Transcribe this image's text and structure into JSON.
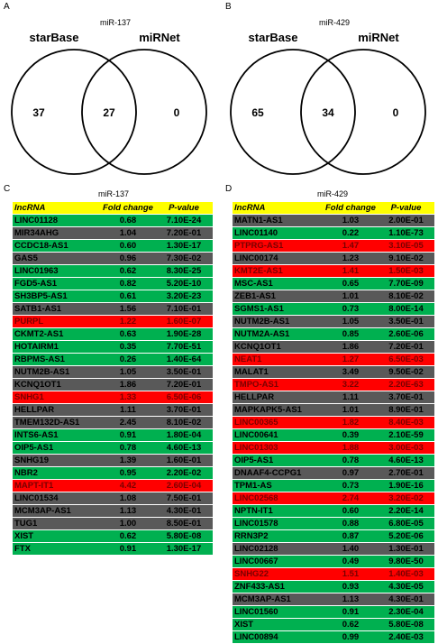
{
  "panels": [
    {
      "id": "A",
      "title": "miR-137",
      "left_label": "starBase",
      "right_label": "miRNet",
      "left_only": "37",
      "overlap": "27",
      "right_only": "0"
    },
    {
      "id": "B",
      "title": "miR-429",
      "left_label": "starBase",
      "right_label": "miRNet",
      "left_only": "65",
      "overlap": "34",
      "right_only": "0"
    }
  ],
  "tables": [
    {
      "id": "C",
      "title": "miR-137",
      "headers": [
        "lncRNA",
        "Fold change",
        "P-value"
      ],
      "rows": [
        {
          "name": "LINC01128",
          "fc": "0.68",
          "p": "7.10E-24",
          "color": "green"
        },
        {
          "name": "MIR34AHG",
          "fc": "1.04",
          "p": "7.20E-01",
          "color": "gray"
        },
        {
          "name": "CCDC18-AS1",
          "fc": "0.60",
          "p": "1.30E-17",
          "color": "green"
        },
        {
          "name": "GAS5",
          "fc": "0.96",
          "p": "7.30E-02",
          "color": "gray"
        },
        {
          "name": "LINC01963",
          "fc": "0.62",
          "p": "8.30E-25",
          "color": "green"
        },
        {
          "name": "FGD5-AS1",
          "fc": "0.82",
          "p": "5.20E-10",
          "color": "green"
        },
        {
          "name": "SH3BP5-AS1",
          "fc": "0.61",
          "p": "3.20E-23",
          "color": "green"
        },
        {
          "name": "SATB1-AS1",
          "fc": "1.56",
          "p": "7.10E-01",
          "color": "gray"
        },
        {
          "name": "PURPL",
          "fc": "1.22",
          "p": "1.60E-07",
          "color": "red"
        },
        {
          "name": "CKMT2-AS1",
          "fc": "0.63",
          "p": "1.90E-28",
          "color": "green"
        },
        {
          "name": "HOTAIRM1",
          "fc": "0.35",
          "p": "7.70E-51",
          "color": "green"
        },
        {
          "name": "RBPMS-AS1",
          "fc": "0.26",
          "p": "1.40E-64",
          "color": "green"
        },
        {
          "name": "NUTM2B-AS1",
          "fc": "1.05",
          "p": "3.50E-01",
          "color": "gray"
        },
        {
          "name": "KCNQ1OT1",
          "fc": "1.86",
          "p": "7.20E-01",
          "color": "gray"
        },
        {
          "name": "SNHG1",
          "fc": "1.33",
          "p": "6.50E-06",
          "color": "red"
        },
        {
          "name": "HELLPAR",
          "fc": "1.11",
          "p": "3.70E-01",
          "color": "gray"
        },
        {
          "name": "TMEM132D-AS1",
          "fc": "2.45",
          "p": "8.10E-02",
          "color": "gray"
        },
        {
          "name": "INTS6-AS1",
          "fc": "0.91",
          "p": "1.80E-04",
          "color": "green"
        },
        {
          "name": "OIP5-AS1",
          "fc": "0.78",
          "p": "4.60E-13",
          "color": "green"
        },
        {
          "name": "SNHG19",
          "fc": "1.39",
          "p": "1.60E-01",
          "color": "gray"
        },
        {
          "name": "NBR2",
          "fc": "0.95",
          "p": "2.20E-02",
          "color": "green"
        },
        {
          "name": "MAPT-IT1",
          "fc": "4.42",
          "p": "2.60E-04",
          "color": "red"
        },
        {
          "name": "LINC01534",
          "fc": "1.08",
          "p": "7.50E-01",
          "color": "gray"
        },
        {
          "name": "MCM3AP-AS1",
          "fc": "1.13",
          "p": "4.30E-01",
          "color": "gray"
        },
        {
          "name": "TUG1",
          "fc": "1.00",
          "p": "8.50E-01",
          "color": "gray"
        },
        {
          "name": "XIST",
          "fc": "0.62",
          "p": "5.80E-08",
          "color": "green"
        },
        {
          "name": "FTX",
          "fc": "0.91",
          "p": "1.30E-17",
          "color": "green"
        }
      ]
    },
    {
      "id": "D",
      "title": "miR-429",
      "headers": [
        "lncRNA",
        "Fold change",
        "P-value"
      ],
      "rows": [
        {
          "name": "MATN1-AS1",
          "fc": "1.03",
          "p": "2.00E-01",
          "color": "gray"
        },
        {
          "name": "LINC01140",
          "fc": "0.22",
          "p": "1.10E-73",
          "color": "green"
        },
        {
          "name": "PTPRG-AS1",
          "fc": "1.47",
          "p": "3.10E-05",
          "color": "red"
        },
        {
          "name": "LINC00174",
          "fc": "1.23",
          "p": "9.10E-02",
          "color": "gray"
        },
        {
          "name": "KMT2E-AS1",
          "fc": "1.41",
          "p": "1.50E-03",
          "color": "red"
        },
        {
          "name": "MSC-AS1",
          "fc": "0.65",
          "p": "7.70E-09",
          "color": "green"
        },
        {
          "name": "ZEB1-AS1",
          "fc": "1.01",
          "p": "8.10E-02",
          "color": "gray"
        },
        {
          "name": "SGMS1-AS1",
          "fc": "0.73",
          "p": "8.00E-14",
          "color": "green"
        },
        {
          "name": "NUTM2B-AS1",
          "fc": "1.05",
          "p": "3.50E-01",
          "color": "gray"
        },
        {
          "name": "NUTM2A-AS1",
          "fc": "0.85",
          "p": "2.60E-06",
          "color": "green"
        },
        {
          "name": "KCNQ1OT1",
          "fc": "1.86",
          "p": "7.20E-01",
          "color": "gray"
        },
        {
          "name": "NEAT1",
          "fc": "1.27",
          "p": "6.50E-03",
          "color": "red"
        },
        {
          "name": "MALAT1",
          "fc": "3.49",
          "p": "9.50E-02",
          "color": "gray"
        },
        {
          "name": "TMPO-AS1",
          "fc": "3.22",
          "p": "2.20E-63",
          "color": "red"
        },
        {
          "name": "HELLPAR",
          "fc": "1.11",
          "p": "3.70E-01",
          "color": "gray"
        },
        {
          "name": "MAPKAPK5-AS1",
          "fc": "1.01",
          "p": "8.90E-01",
          "color": "gray"
        },
        {
          "name": "LINC00365",
          "fc": "1.82",
          "p": "8.40E-03",
          "color": "red"
        },
        {
          "name": "LINC00641",
          "fc": "0.39",
          "p": "2.10E-59",
          "color": "green"
        },
        {
          "name": "LINC01303",
          "fc": "1.88",
          "p": "3.00E-03",
          "color": "red"
        },
        {
          "name": "OIP5-AS1",
          "fc": "0.78",
          "p": "4.60E-13",
          "color": "green"
        },
        {
          "name": "DNAAF4-CCPG1",
          "fc": "0.97",
          "p": "2.70E-01",
          "color": "gray"
        },
        {
          "name": "TPM1-AS",
          "fc": "0.73",
          "p": "1.90E-16",
          "color": "green"
        },
        {
          "name": "LINC02568",
          "fc": "2.74",
          "p": "3.20E-02",
          "color": "red"
        },
        {
          "name": "NPTN-IT1",
          "fc": "0.60",
          "p": "2.20E-14",
          "color": "green"
        },
        {
          "name": "LINC01578",
          "fc": "0.88",
          "p": "6.80E-05",
          "color": "green"
        },
        {
          "name": "RRN3P2",
          "fc": "0.87",
          "p": "5.20E-06",
          "color": "green"
        },
        {
          "name": "LINC02128",
          "fc": "1.40",
          "p": "1.30E-01",
          "color": "gray"
        },
        {
          "name": "LINC00667",
          "fc": "0.49",
          "p": "9.80E-50",
          "color": "green"
        },
        {
          "name": "SNHG22",
          "fc": "1.51",
          "p": "1.40E-03",
          "color": "red"
        },
        {
          "name": "ZNF433-AS1",
          "fc": "0.93",
          "p": "4.30E-05",
          "color": "green"
        },
        {
          "name": "MCM3AP-AS1",
          "fc": "1.13",
          "p": "4.30E-01",
          "color": "gray"
        },
        {
          "name": "LINC01560",
          "fc": "0.91",
          "p": "2.30E-04",
          "color": "green"
        },
        {
          "name": "XIST",
          "fc": "0.62",
          "p": "5.80E-08",
          "color": "green"
        },
        {
          "name": "LINC00894",
          "fc": "0.99",
          "p": "2.40E-03",
          "color": "green"
        }
      ]
    }
  ]
}
